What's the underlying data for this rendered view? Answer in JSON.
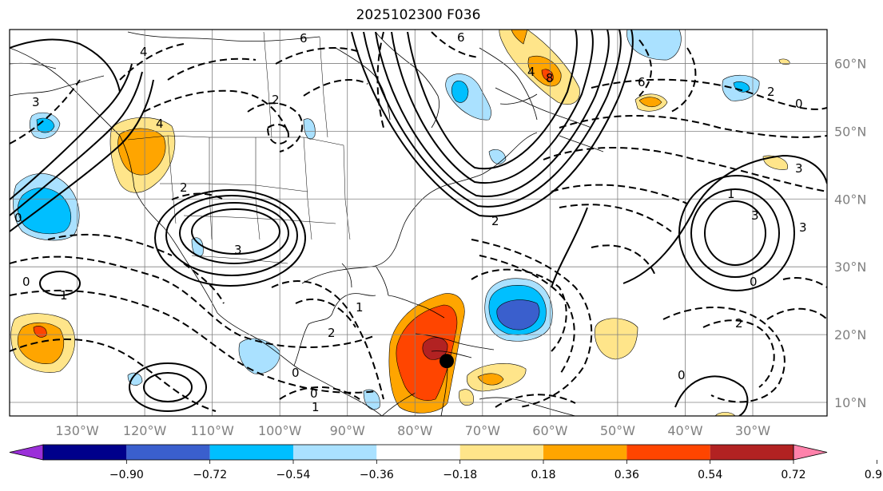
{
  "title": "2025102300 F036",
  "map": {
    "lon_range": [
      -140,
      -19
    ],
    "lat_range": [
      8,
      65
    ],
    "lon_ticks": [
      {
        "value": -130,
        "label": "130°W"
      },
      {
        "value": -120,
        "label": "120°W"
      },
      {
        "value": -110,
        "label": "110°W"
      },
      {
        "value": -100,
        "label": "100°W"
      },
      {
        "value": -90,
        "label": "90°W"
      },
      {
        "value": -80,
        "label": "80°W"
      },
      {
        "value": -70,
        "label": "70°W"
      },
      {
        "value": -60,
        "label": "60°W"
      },
      {
        "value": -50,
        "label": "50°W"
      },
      {
        "value": -40,
        "label": "40°W"
      },
      {
        "value": -30,
        "label": "30°W"
      }
    ],
    "lat_ticks": [
      {
        "value": 60,
        "label": "60°N"
      },
      {
        "value": 50,
        "label": "50°N"
      },
      {
        "value": 40,
        "label": "40°N"
      },
      {
        "value": 30,
        "label": "30°N"
      },
      {
        "value": 20,
        "label": "20°N"
      },
      {
        "value": 10,
        "label": "10°N"
      }
    ],
    "grid": true,
    "storm_marker": {
      "lon": -75.3,
      "lat": 16.1
    }
  },
  "colorbar": {
    "levels": [
      "−0.90",
      "−0.72",
      "−0.54",
      "−0.36",
      "−0.18",
      "0.18",
      "0.36",
      "0.54",
      "0.72",
      "0.90"
    ],
    "colors": [
      "#9b30d9",
      "#00008b",
      "#3a5fcd",
      "#00bfff",
      "#aae1ff",
      "#ffffff",
      "#ffe58a",
      "#ffa500",
      "#ff4500",
      "#b22222",
      "#ff82ab"
    ]
  },
  "contour_labels": [
    "6",
    "6",
    "6",
    "4",
    "4",
    "4",
    "3",
    "3",
    "3",
    "3",
    "3",
    "2",
    "2",
    "2",
    "2",
    "2",
    "2",
    "1",
    "1",
    "1",
    "1",
    "0",
    "0",
    "0",
    "0",
    "0",
    "0",
    "0",
    "8"
  ]
}
